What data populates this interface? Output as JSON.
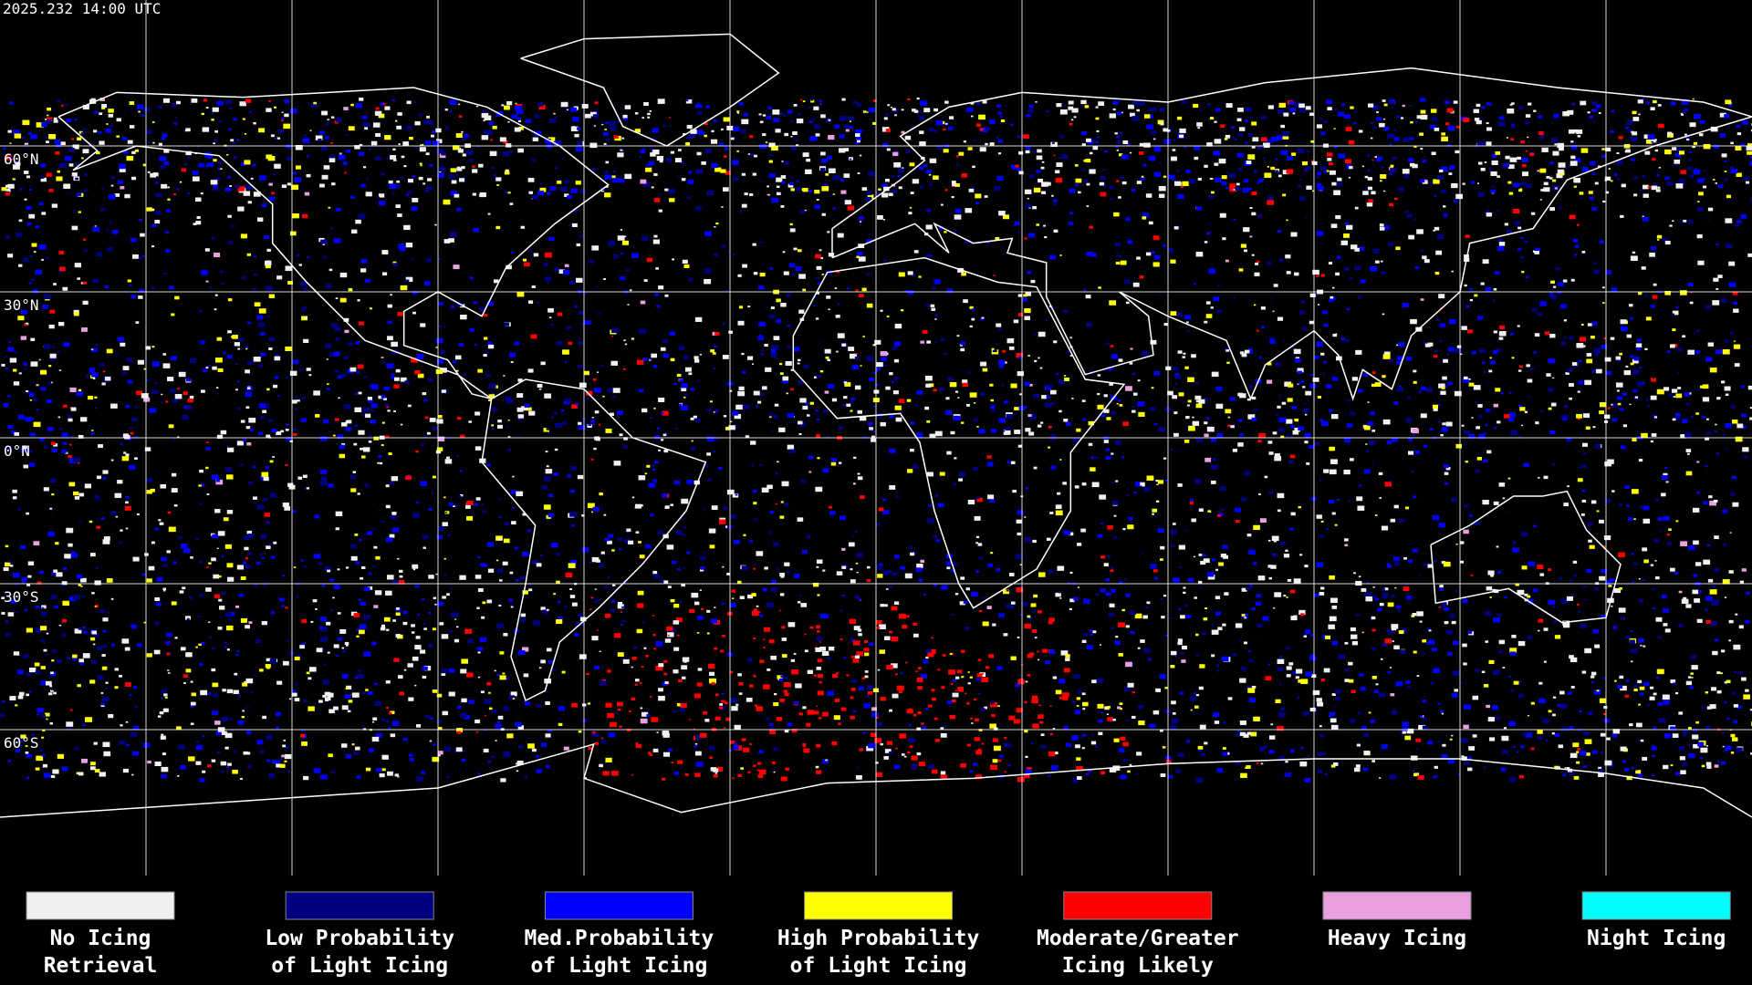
{
  "header": {
    "title": "2025.232 14:00 UTC"
  },
  "map": {
    "lat_labels": [
      "60°N",
      "30°N",
      "0°N",
      "30°S",
      "60°S"
    ]
  },
  "legend": {
    "items": [
      {
        "line1": "No Icing",
        "line2": "Retrieval",
        "color": "#f0f0f0"
      },
      {
        "line1": "Low Probability",
        "line2": "of Light Icing",
        "color": "#000080"
      },
      {
        "line1": "Med.Probability",
        "line2": "of Light Icing",
        "color": "#0000ff"
      },
      {
        "line1": "High Probability",
        "line2": "of Light Icing",
        "color": "#ffff00"
      },
      {
        "line1": "Moderate/Greater",
        "line2": "Icing Likely",
        "color": "#ff0000"
      },
      {
        "line1": "Heavy Icing",
        "line2": null,
        "color": "#e8a0e0"
      },
      {
        "line1": "Night Icing",
        "line2": null,
        "color": "#00ffff"
      }
    ]
  }
}
